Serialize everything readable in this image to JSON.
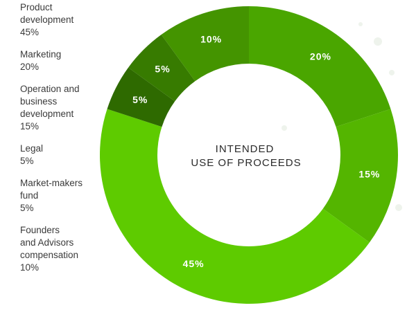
{
  "legend": [
    {
      "name": "Product development",
      "lines": [
        "Product",
        "development"
      ],
      "value_text": "45%"
    },
    {
      "name": "Marketing",
      "lines": [
        "Marketing"
      ],
      "value_text": "20%"
    },
    {
      "name": "Operation and business development",
      "lines": [
        "Operation and",
        "business",
        "development"
      ],
      "value_text": "15%"
    },
    {
      "name": "Legal",
      "lines": [
        "Legal"
      ],
      "value_text": "5%"
    },
    {
      "name": "Market-makers fund",
      "lines": [
        "Market-makers",
        "fund"
      ],
      "value_text": "5%"
    },
    {
      "name": "Founders and Advisors compensation",
      "lines": [
        "Founders",
        "and Advisors",
        "compensation"
      ],
      "value_text": "10%"
    }
  ],
  "center_title": [
    "INTENDED",
    "USE OF PROCEEDS"
  ],
  "chart_data": {
    "type": "pie",
    "donut": true,
    "direction": "clockwise from top",
    "slices": [
      {
        "label": "Marketing",
        "value": 20,
        "value_text": "20%",
        "color": "#4aa600"
      },
      {
        "label": "Operation and business development",
        "value": 15,
        "value_text": "15%",
        "color": "#54b500"
      },
      {
        "label": "Product development",
        "value": 45,
        "value_text": "45%",
        "color": "#5ecb00"
      },
      {
        "label": "Legal",
        "value": 5,
        "value_text": "5%",
        "color": "#2e6a00"
      },
      {
        "label": "Market-makers fund",
        "value": 5,
        "value_text": "5%",
        "color": "#377b00"
      },
      {
        "label": "Founders and Advisors compensation",
        "value": 10,
        "value_text": "10%",
        "color": "#449400"
      }
    ]
  }
}
